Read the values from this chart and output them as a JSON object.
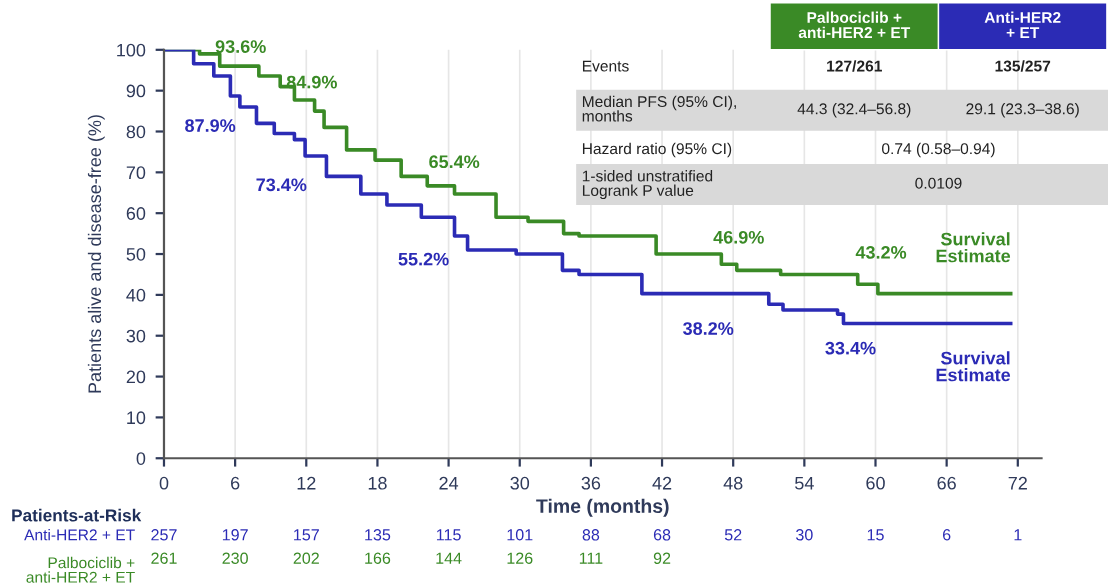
{
  "chart_data": {
    "type": "step",
    "xlabel": "Time (months)",
    "ylabel": "Patients alive and disease-free (%)",
    "xlim": [
      0,
      74
    ],
    "xticks": [
      0,
      6,
      12,
      18,
      24,
      30,
      36,
      42,
      48,
      54,
      60,
      66,
      72
    ],
    "ylim": [
      0,
      100
    ],
    "yticks": [
      0,
      10,
      20,
      30,
      40,
      50,
      60,
      70,
      80,
      90,
      100
    ],
    "grid": "x",
    "legend": "top right",
    "series": [
      {
        "name": "Palbociclib +\nanti-HER2 + ET",
        "color": "#3a8a26",
        "x": [
          0,
          3,
          4.7,
          8,
          9.8,
          11,
          12.7,
          13.5,
          15.4,
          17.8,
          20,
          22.2,
          24.5,
          27.6,
          28,
          30.7,
          33.7,
          35,
          41.5,
          47,
          48.3,
          52,
          58.5,
          60.2,
          71.4
        ],
        "values": [
          100,
          99,
          96,
          93.6,
          91,
          87.7,
          85,
          81,
          75.5,
          73,
          69,
          66.7,
          64.7,
          64.7,
          59,
          58,
          55,
          54.4,
          50,
          47.5,
          46,
          45,
          42.6,
          40.3,
          40.3
        ]
      },
      {
        "name": "Anti-HER2\n+ ET",
        "color": "#2b2bb5",
        "x": [
          0,
          2.5,
          4.2,
          5.6,
          6.4,
          7.8,
          9.3,
          11,
          11.9,
          13.7,
          16.6,
          18.8,
          21.7,
          24.5,
          25.6,
          29.7,
          33.6,
          35,
          40.3,
          51,
          52.2,
          56.8,
          57.3,
          71.4
        ],
        "values": [
          100,
          96.6,
          93.6,
          88.7,
          86,
          82,
          79.5,
          78,
          74,
          69,
          64.7,
          62,
          59,
          54.4,
          51,
          50,
          46,
          45,
          40.3,
          37.7,
          36.3,
          35.3,
          33,
          33
        ]
      }
    ],
    "annotations": [
      {
        "text": "93.6%",
        "x": 6,
        "y": 93.6
      },
      {
        "text": "84.9%",
        "x": 12,
        "y": 84.9
      },
      {
        "text": "65.4%",
        "x": 24,
        "y": 65.4
      },
      {
        "text": "46.9%",
        "x": 48,
        "y": 46.9
      },
      {
        "text": "43.2%",
        "x": 60,
        "y": 43.2
      },
      {
        "text": "87.9%",
        "x": 6,
        "y": 87.9
      },
      {
        "text": "73.4%",
        "x": 12,
        "y": 73.4
      },
      {
        "text": "55.2%",
        "x": 24,
        "y": 55.2
      },
      {
        "text": "38.2%",
        "x": 48,
        "y": 38.2
      },
      {
        "text": "33.4%",
        "x": 60,
        "y": 33.4
      },
      {
        "text": "Survival\nEstimate",
        "x": 71.4,
        "y": 40.3
      },
      {
        "text": "Survival\nEstimate",
        "x": 71.4,
        "y": 33
      },
      "Events",
      "127/261",
      "135/257",
      "Median PFS (95% CI),\nmonths",
      "44.3 (32.4–56.8)",
      "29.1 (23.3–38.6)",
      "Hazard ratio (95% CI)",
      "0.74 (0.58–0.94)",
      "1-sided unstratified\nLogrank P value",
      "0.0109",
      "Patients-at-Risk",
      "Anti-HER2 + ET",
      "257",
      "197",
      "157",
      "135",
      "115",
      "101",
      "88",
      "68",
      "52",
      "30",
      "15",
      "6",
      "1",
      "Palbociclib +\nanti-HER2 + ET",
      "261",
      "230",
      "202",
      "166",
      "144",
      "126",
      "111",
      "92"
    ]
  }
}
